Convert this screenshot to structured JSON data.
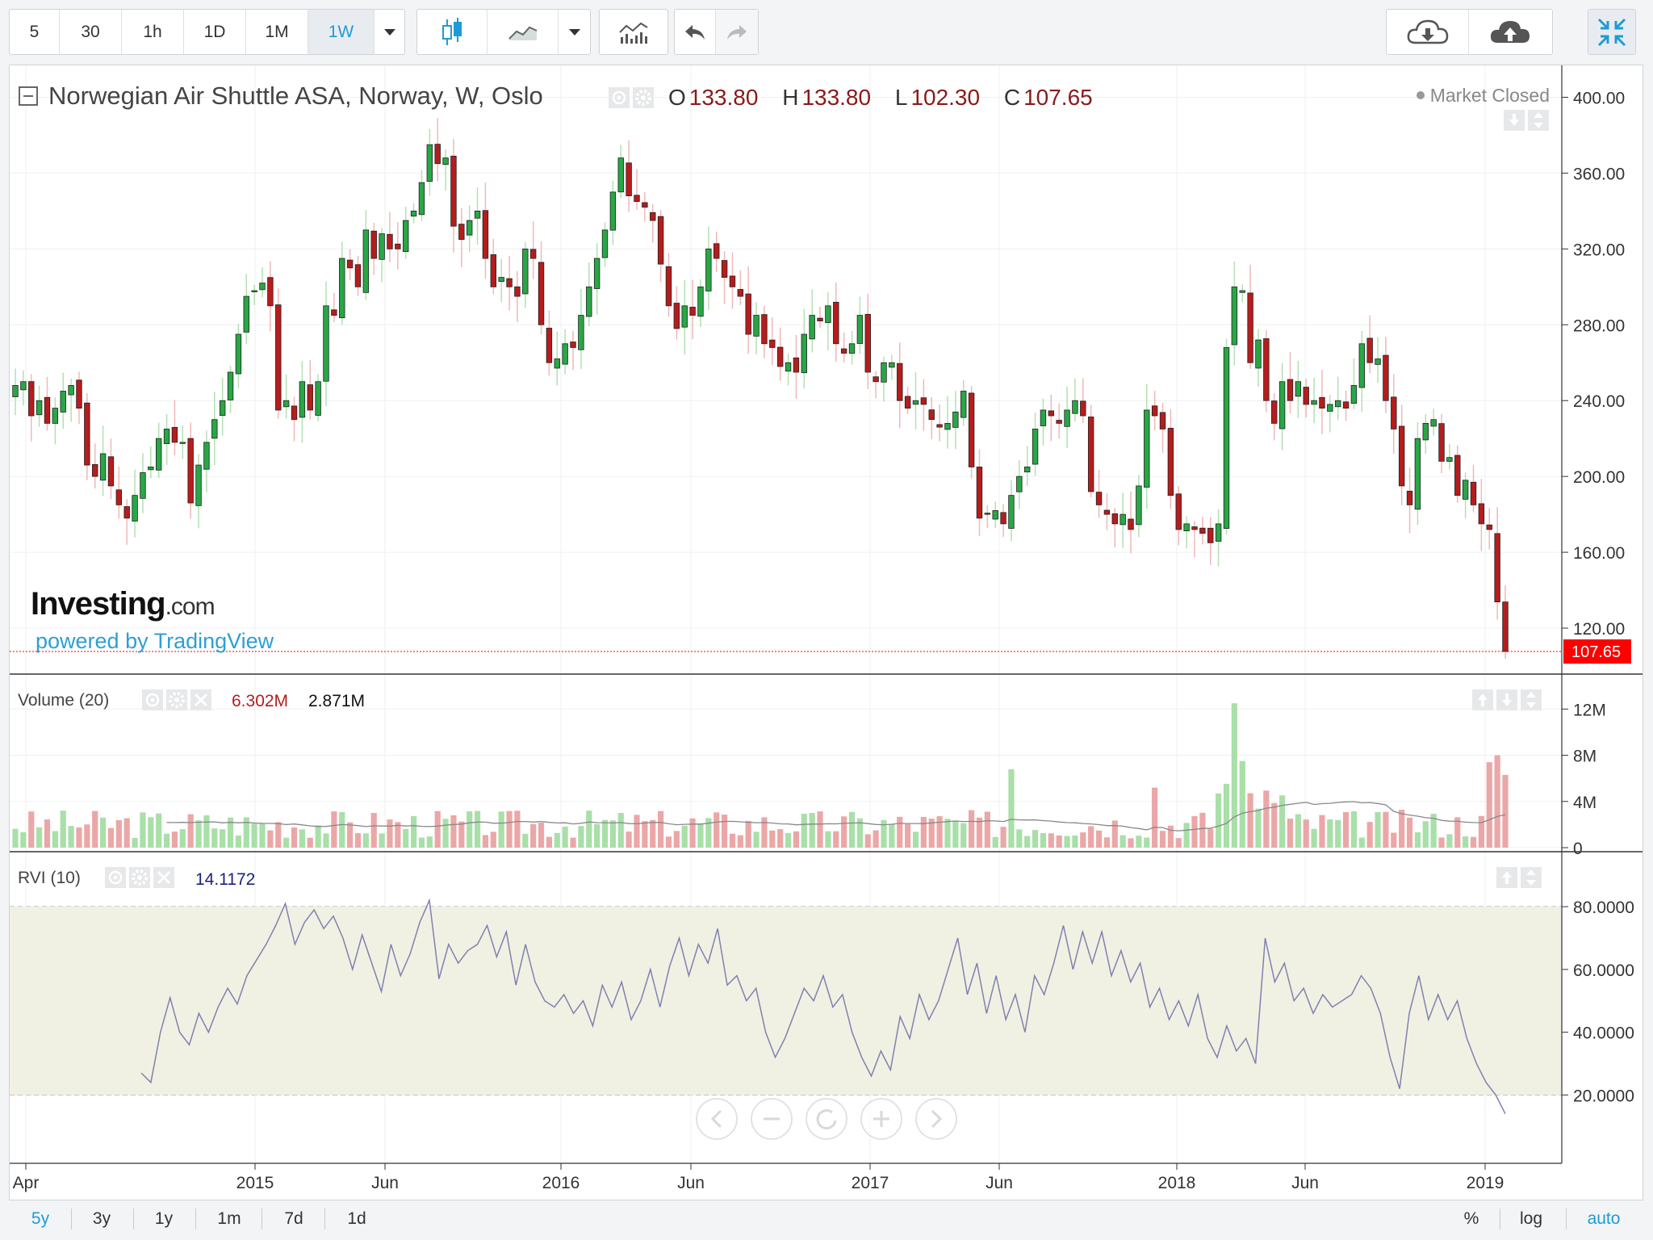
{
  "toolbar": {
    "intervals": [
      "5",
      "30",
      "1h",
      "1D",
      "1M",
      "1W"
    ],
    "active_interval": "1W",
    "icons": [
      "candles-icon",
      "line-chart-icon",
      "chevron-down-icon",
      "indicators-icon",
      "undo-icon",
      "redo-icon",
      "cloud-download-icon",
      "cloud-upload-icon",
      "collapse-icon"
    ]
  },
  "legend": {
    "title": "Norwegian Air Shuttle ASA, Norway, W, Oslo",
    "o_label": "O",
    "o_value": "133.80",
    "h_label": "H",
    "h_value": "133.80",
    "l_label": "L",
    "l_value": "102.30",
    "c_label": "C",
    "c_value": "107.65",
    "status": "Market Closed",
    "last_price": "107.65"
  },
  "branding": {
    "logo_text": "Investing",
    "logo_suffix": ".com",
    "powered_by": "powered by TradingView"
  },
  "volume_pane": {
    "label": "Volume (20)",
    "value1": "6.302M",
    "value2": "2.871M"
  },
  "rvi_pane": {
    "label": "RVI (10)",
    "value": "14.1172"
  },
  "nav": {
    "icons": [
      "scroll-left-icon",
      "zoom-out-icon",
      "reset-icon",
      "zoom-in-icon",
      "scroll-right-icon"
    ]
  },
  "ranges": [
    "5y",
    "3y",
    "1y",
    "1m",
    "7d",
    "1d"
  ],
  "active_range": "5y",
  "scale_buttons": [
    "%",
    "log",
    "auto"
  ],
  "active_scale": "auto",
  "colors": {
    "up": "#28a745",
    "down": "#b71c1c",
    "up_vol": "#a9dfa9",
    "down_vol": "#eba7a7",
    "rvi": "#8080b0",
    "rvi_band": "#f1f1e3",
    "last": "#ff0000",
    "accent": "#1e9bd7"
  },
  "chart_data": [
    {
      "type": "candlestick",
      "title": "Norwegian Air Shuttle ASA, Norway, W, Oslo",
      "x_tick_labels": [
        "Apr",
        "2015",
        "Jun",
        "2016",
        "Jun",
        "2017",
        "Jun",
        "2018",
        "Jun",
        "2019"
      ],
      "y_tick_labels": [
        "120.00",
        "160.00",
        "200.00",
        "240.00",
        "280.00",
        "320.00",
        "360.00",
        "400.00"
      ],
      "ylim": [
        100,
        410
      ],
      "last": 107.65,
      "close_series": {
        "interval": "1W",
        "values": [
          248,
          250,
          232,
          240,
          228,
          236,
          245,
          248,
          236,
          206,
          200,
          212,
          195,
          185,
          178,
          190,
          202,
          205,
          220,
          225,
          218,
          218,
          186,
          206,
          218,
          230,
          240,
          255,
          275,
          295,
          298,
          302,
          290,
          235,
          240,
          230,
          250,
          235,
          250,
          290,
          285,
          315,
          310,
          300,
          330,
          315,
          328,
          320,
          320,
          335,
          340,
          355,
          375,
          365,
          368,
          332,
          325,
          335,
          340,
          315,
          300,
          305,
          300,
          295,
          320,
          315,
          280,
          260,
          262,
          270,
          268,
          285,
          300,
          315,
          330,
          350,
          368,
          348,
          345,
          342,
          335,
          312,
          290,
          278,
          290,
          285,
          300,
          320,
          315,
          305,
          300,
          295,
          275,
          285,
          270,
          268,
          258,
          260,
          255,
          275,
          285,
          282,
          290,
          270,
          265,
          270,
          285,
          255,
          250,
          260,
          260,
          240,
          236,
          240,
          238,
          230,
          226,
          228,
          234,
          245,
          205,
          178,
          180,
          182,
          175,
          190,
          200,
          205,
          225,
          235,
          232,
          228,
          235,
          240,
          232,
          192,
          185,
          180,
          175,
          180,
          172,
          195,
          235,
          232,
          225,
          190,
          172,
          175,
          172,
          170,
          165,
          175,
          268,
          300,
          298,
          260,
          272,
          240,
          228,
          250,
          240,
          250,
          238,
          240,
          236,
          238,
          240,
          236,
          248,
          270,
          260,
          262,
          240,
          225,
          195,
          185,
          220,
          228,
          230,
          208,
          210,
          190,
          198,
          185,
          175,
          172,
          133.8,
          107.65
        ]
      },
      "candles_note": "Weekly OHLC candles, April 2014 to January 2019"
    },
    {
      "type": "bar",
      "name": "Volume (20)",
      "y_tick_labels": [
        "0",
        "4M",
        "8M",
        "12M"
      ],
      "ylim": [
        0,
        13
      ],
      "unit": "M",
      "moving_average_period": 20,
      "peak_value_m": 12.5
    },
    {
      "type": "line",
      "name": "RVI (10)",
      "y_tick_labels": [
        "20.0000",
        "40.0000",
        "60.0000",
        "80.0000"
      ],
      "ylim": [
        8,
        88
      ],
      "band": [
        20,
        80
      ],
      "last": 14.1172,
      "values": [
        27,
        24,
        40,
        51,
        40,
        36,
        46,
        40,
        48,
        54,
        49,
        58,
        63,
        68,
        74,
        81,
        68,
        75,
        79,
        73,
        77,
        70,
        60,
        71,
        62,
        53,
        68,
        58,
        65,
        75,
        82,
        57,
        68,
        62,
        66,
        68,
        74,
        64,
        72,
        55,
        68,
        56,
        50,
        48,
        52,
        46,
        50,
        42,
        55,
        48,
        56,
        44,
        50,
        60,
        48,
        61,
        70,
        58,
        68,
        62,
        73,
        55,
        58,
        50,
        54,
        40,
        32,
        38,
        46,
        54,
        50,
        58,
        48,
        52,
        40,
        32,
        26,
        34,
        28,
        45,
        38,
        52,
        44,
        50,
        60,
        70,
        52,
        62,
        46,
        58,
        44,
        52,
        40,
        58,
        52,
        62,
        74,
        60,
        72,
        62,
        72,
        58,
        66,
        56,
        62,
        48,
        54,
        44,
        50,
        42,
        52,
        38,
        32,
        42,
        34,
        38,
        30,
        70,
        56,
        62,
        50,
        54,
        46,
        52,
        48,
        50,
        52,
        58,
        54,
        46,
        32,
        22,
        46,
        58,
        44,
        52,
        44,
        50,
        38,
        30,
        24,
        20,
        14
      ]
    }
  ]
}
